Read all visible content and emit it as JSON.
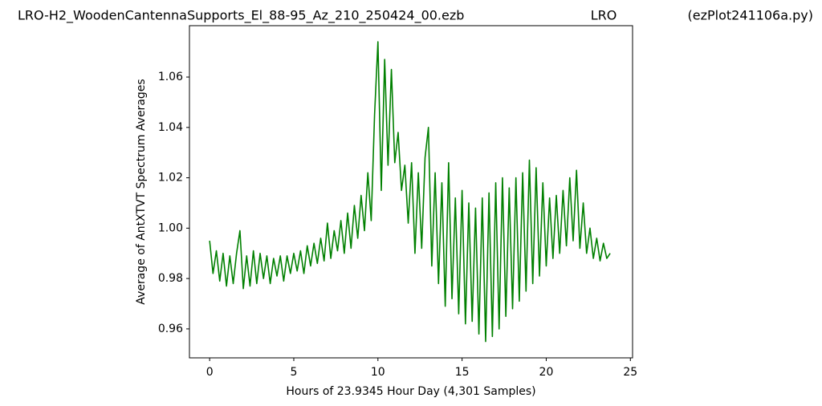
{
  "chart_data": {
    "type": "line",
    "title": "LRO-H2_WoodenCantennaSupports_El_88-95_Az_210_250424_00.ezb",
    "subtitle": "LRO",
    "annotation": "(ezPlot241106a.py)",
    "xlabel": "Hours of 23.9345 Hour Day  (4,301 Samples)",
    "ylabel": "Average of AntXTVT Spectrum Averages",
    "color": "#008000",
    "xlim": [
      -1.2,
      25.13
    ],
    "ylim": [
      0.9485,
      1.0804
    ],
    "xticks": [
      0,
      5,
      10,
      15,
      20,
      25
    ],
    "yticks": [
      0.96,
      0.98,
      {
        "value": 1,
        "label": "1.00"
      },
      1.02,
      1.04,
      1.06
    ],
    "x": [
      0,
      0.2,
      0.4,
      0.6,
      0.8,
      1.0,
      1.2,
      1.4,
      1.6,
      1.8,
      2.0,
      2.2,
      2.4,
      2.6,
      2.8,
      3.0,
      3.2,
      3.4,
      3.6,
      3.8,
      4.0,
      4.2,
      4.4,
      4.6,
      4.8,
      5.0,
      5.2,
      5.4,
      5.6,
      5.8,
      6.0,
      6.2,
      6.4,
      6.6,
      6.8,
      7.0,
      7.2,
      7.4,
      7.6,
      7.8,
      8.0,
      8.2,
      8.4,
      8.6,
      8.8,
      9.0,
      9.2,
      9.4,
      9.6,
      9.8,
      10.0,
      10.2,
      10.4,
      10.6,
      10.8,
      11.0,
      11.2,
      11.4,
      11.6,
      11.8,
      12.0,
      12.2,
      12.4,
      12.6,
      12.8,
      13.0,
      13.2,
      13.4,
      13.6,
      13.8,
      14.0,
      14.2,
      14.4,
      14.6,
      14.8,
      15.0,
      15.2,
      15.4,
      15.6,
      15.8,
      16.0,
      16.2,
      16.4,
      16.6,
      16.8,
      17.0,
      17.2,
      17.4,
      17.6,
      17.8,
      18.0,
      18.2,
      18.4,
      18.6,
      18.8,
      19.0,
      19.2,
      19.4,
      19.6,
      19.8,
      20.0,
      20.2,
      20.4,
      20.6,
      20.8,
      21.0,
      21.2,
      21.4,
      21.6,
      21.8,
      22.0,
      22.2,
      22.4,
      22.6,
      22.8,
      23.0,
      23.2,
      23.4,
      23.6,
      23.8
    ],
    "values": [
      0.995,
      0.982,
      0.991,
      0.979,
      0.99,
      0.977,
      0.989,
      0.978,
      0.99,
      0.999,
      0.976,
      0.989,
      0.977,
      0.991,
      0.978,
      0.99,
      0.98,
      0.989,
      0.978,
      0.988,
      0.981,
      0.989,
      0.979,
      0.989,
      0.982,
      0.99,
      0.983,
      0.991,
      0.982,
      0.993,
      0.985,
      0.994,
      0.986,
      0.996,
      0.987,
      1.002,
      0.988,
      0.999,
      0.991,
      1.003,
      0.99,
      1.006,
      0.992,
      1.009,
      0.996,
      1.013,
      0.999,
      1.022,
      1.003,
      1.045,
      1.074,
      1.015,
      1.067,
      1.025,
      1.063,
      1.026,
      1.038,
      1.015,
      1.025,
      1.002,
      1.026,
      0.99,
      1.022,
      0.992,
      1.028,
      1.04,
      0.985,
      1.022,
      0.978,
      1.018,
      0.969,
      1.026,
      0.972,
      1.012,
      0.966,
      1.015,
      0.962,
      1.01,
      0.963,
      1.008,
      0.958,
      1.012,
      0.955,
      1.014,
      0.957,
      1.018,
      0.96,
      1.02,
      0.965,
      1.016,
      0.968,
      1.02,
      0.971,
      1.022,
      0.975,
      1.027,
      0.978,
      1.024,
      0.981,
      1.018,
      0.985,
      1.012,
      0.988,
      1.013,
      0.99,
      1.015,
      0.993,
      1.02,
      0.995,
      1.023,
      0.992,
      1.01,
      0.99,
      1.0,
      0.988,
      0.996,
      0.987,
      0.994,
      0.988,
      0.99
    ]
  }
}
